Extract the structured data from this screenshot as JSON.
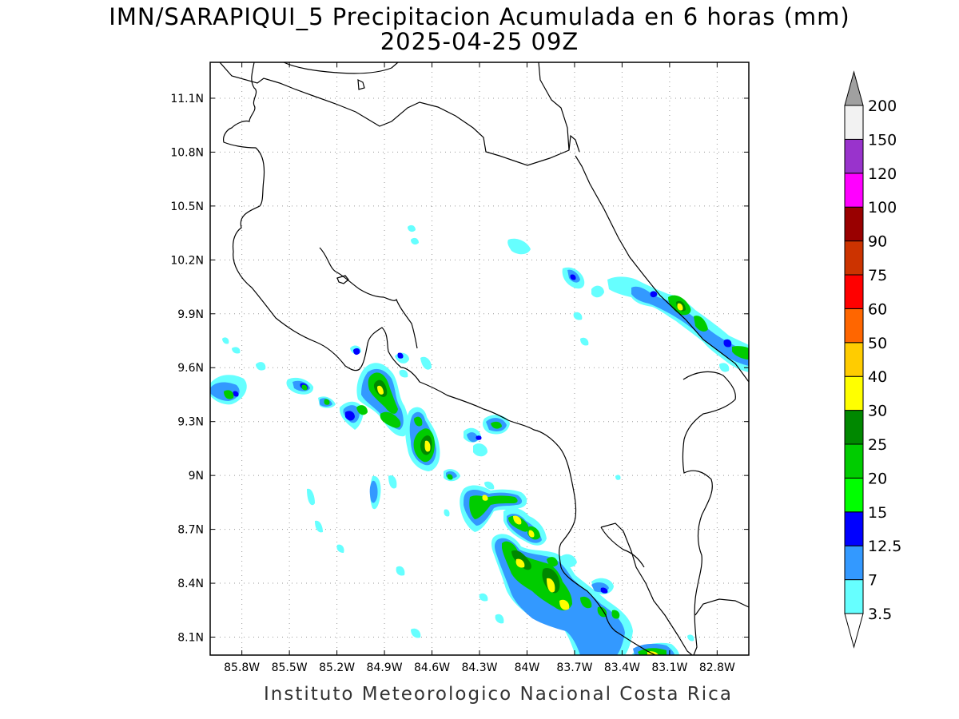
{
  "title": {
    "line1": "IMN/SARAPIQUI_5 Precipitacion Acumulada en 6 horas (mm)",
    "line2": "2025-04-25 09Z"
  },
  "credit": "Instituto Meteorologico Nacional Costa Rica",
  "map": {
    "lon_range": [
      -86.0,
      -82.6
    ],
    "lat_range": [
      8.0,
      11.3
    ],
    "lon_ticks": [
      "85.8W",
      "85.5W",
      "85.2W",
      "84.9W",
      "84.6W",
      "84.3W",
      "84W",
      "83.7W",
      "83.4W",
      "83.1W",
      "82.8W"
    ],
    "lon_values": [
      -85.8,
      -85.5,
      -85.2,
      -84.9,
      -84.6,
      -84.3,
      -84.0,
      -83.7,
      -83.4,
      -83.1,
      -82.8
    ],
    "lat_ticks": [
      "11.1N",
      "10.8N",
      "10.5N",
      "10.2N",
      "9.9N",
      "9.6N",
      "9.3N",
      "9N",
      "8.7N",
      "8.4N",
      "8.1N"
    ],
    "lat_values": [
      11.1,
      10.8,
      10.5,
      10.2,
      9.9,
      9.6,
      9.3,
      9.0,
      8.7,
      8.4,
      8.1
    ],
    "grid": true
  },
  "colorbar": {
    "levels": [
      "3.5",
      "7",
      "12.5",
      "15",
      "20",
      "25",
      "30",
      "40",
      "50",
      "60",
      "75",
      "90",
      "100",
      "120",
      "150",
      "200"
    ],
    "colors": [
      "#66ffff",
      "#3399ff",
      "#0000ff",
      "#00ff00",
      "#00cc00",
      "#008800",
      "#ffff00",
      "#ffcc00",
      "#ff6600",
      "#ff0000",
      "#cc3300",
      "#990000",
      "#ff00ff",
      "#9933cc",
      "#f2f2f2"
    ],
    "under_color": "#ffffff",
    "over_color": "#a0a0a0"
  }
}
